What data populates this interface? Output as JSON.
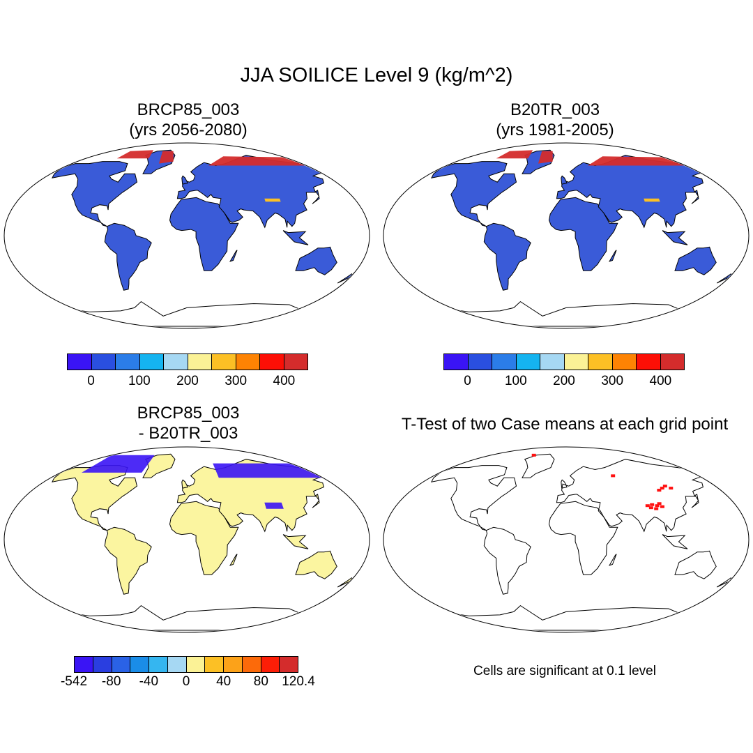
{
  "title": "JJA SOILICE Level 9 (kg/m^2)",
  "panels": [
    {
      "title_line1": "BRCP85_003",
      "title_line2": "(yrs 2056-2080)"
    },
    {
      "title_line1": "B20TR_003",
      "title_line2": "(yrs 1981-2005)"
    },
    {
      "title_line1": "BRCP85_003",
      "title_line2": "- B20TR_003"
    },
    {
      "title_line1": "T-Test of two Case means at each grid point",
      "title_line2": ""
    }
  ],
  "colorbar_abs": {
    "colors": [
      "#3a14f5",
      "#2a4fe0",
      "#2b7de8",
      "#15b4f0",
      "#a6d8f3",
      "#fbf296",
      "#fcc025",
      "#fd8303",
      "#fc0f06",
      "#d42c2c"
    ],
    "labels": [
      "0",
      "100",
      "200",
      "300",
      "400"
    ]
  },
  "colorbar_diff": {
    "colors": [
      "#3a14f5",
      "#2a3ee0",
      "#2a62e6",
      "#1a8de8",
      "#35b6f0",
      "#a6d8f3",
      "#fbf296",
      "#fcc025",
      "#fca219",
      "#fc6a0a",
      "#fc1e07",
      "#d42c2c"
    ],
    "labels": [
      "-542",
      "-80",
      "-40",
      "0",
      "40",
      "80",
      "120.4"
    ]
  },
  "significance_note": "Cells are significant at 0.1 level",
  "fill_colors": {
    "land_abs": "#3a5bd8",
    "land_diff": "#fbf5a0",
    "permafrost": "#d42c2c",
    "significant": "#ff1010"
  }
}
